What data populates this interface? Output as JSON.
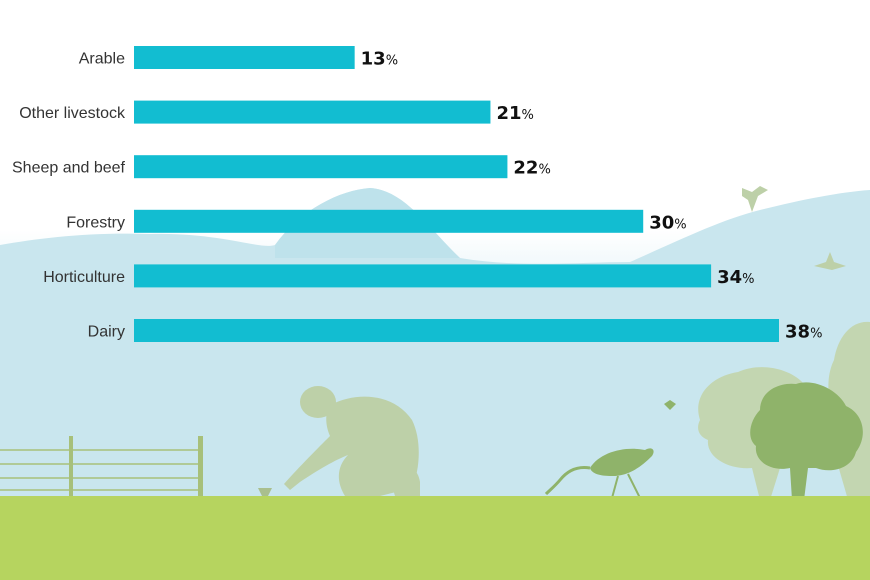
{
  "chart_data": {
    "type": "bar",
    "orientation": "horizontal",
    "categories": [
      "Arable",
      "Other livestock",
      "Sheep and beef",
      "Forestry",
      "Horticulture",
      "Dairy"
    ],
    "values": [
      13,
      21,
      22,
      30,
      34,
      38
    ],
    "value_suffix": "%",
    "xlim": [
      0,
      40
    ],
    "grid": false,
    "legend": "none",
    "bar_color": "#12BDD1"
  },
  "colors": {
    "bar": "#12BDD1",
    "sky": "#cbe7ef",
    "mountain": "#b8dfe9",
    "grass": "#b6d45f",
    "silhouette_light": "#bdd0a8",
    "silhouette_dark": "#8fb36a",
    "bird": "#8fb36a"
  },
  "scene": {
    "icons": [
      "mountain-backdrop-icon",
      "bird-icon",
      "farmer-planting-icon",
      "heron-icon",
      "fence-icon",
      "tree-icon",
      "grass-ground-icon"
    ]
  }
}
